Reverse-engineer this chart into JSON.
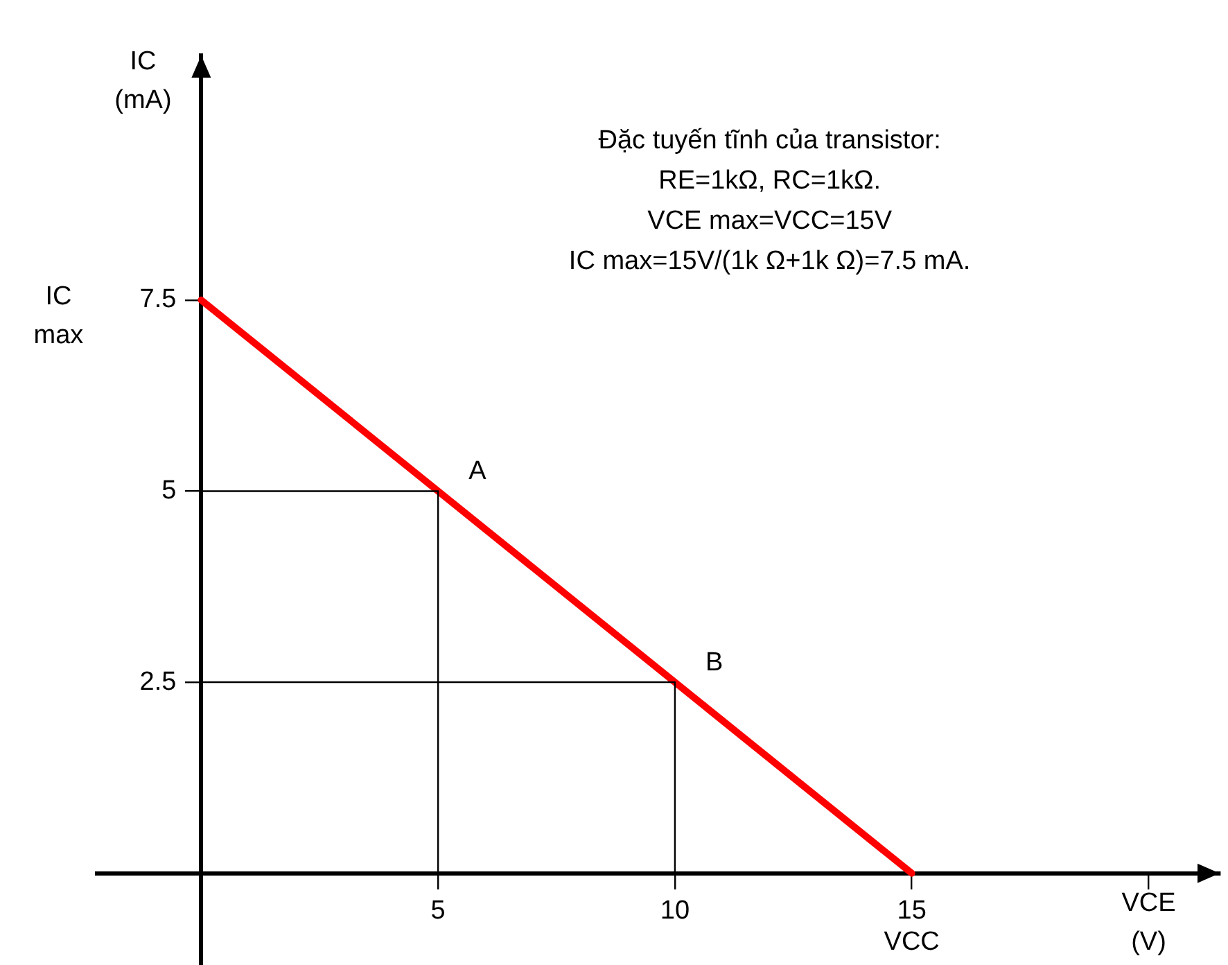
{
  "chart_data": {
    "type": "line",
    "title": "Đặc tuyến tĩnh của transistor:",
    "xlabel": "VCE (V)",
    "ylabel": "IC (mA)",
    "xlim": [
      -2.2,
      21.5
    ],
    "ylim": [
      -1.2,
      10.7
    ],
    "xticks": [
      5,
      10,
      15,
      {
        "value": 20,
        "label": null
      }
    ],
    "yticks": [
      2.5,
      5,
      7.5
    ],
    "grid": false,
    "legend": false,
    "marker": "none",
    "line_style": "solid",
    "series": [
      {
        "color": "#ff0000",
        "x": [
          0,
          15
        ],
        "values": [
          7.5,
          0
        ]
      },
      {
        "color": "#000000",
        "x": [
          0,
          5,
          5
        ],
        "values": [
          5,
          5,
          0
        ]
      },
      {
        "color": "#000000",
        "x": [
          0,
          10,
          10
        ],
        "values": [
          2.5,
          2.5,
          0
        ]
      }
    ],
    "annotations": [
      "RE=1kΩ, RC=1kΩ.",
      "VCE max=VCC=15V",
      "IC max=15V/(1k Ω+1k Ω)=7.5 mA.",
      "IC max",
      {
        "text": "A",
        "x": 5,
        "y": 5
      },
      {
        "text": "B",
        "x": 10,
        "y": 2.5
      },
      {
        "text": "VCC",
        "x": 15,
        "y": 0
      }
    ]
  }
}
